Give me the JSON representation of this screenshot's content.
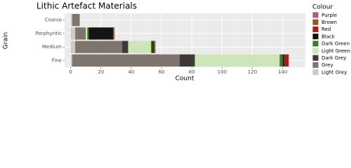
{
  "chart_data": {
    "type": "stacked-barh",
    "title": "Lithic Artefact Materials",
    "x_label": "Count",
    "y_label": "Grain",
    "legend_title": "Colour",
    "categories": [
      "Coarse",
      "Porphyritic",
      "Medium",
      "Fine"
    ],
    "series": [
      {
        "name": "Purple",
        "color": "#a0608f",
        "values": [
          0,
          0,
          0,
          0
        ]
      },
      {
        "name": "Brown",
        "color": "#8b5a2b",
        "values": [
          0,
          1,
          1,
          0
        ]
      },
      {
        "name": "Red",
        "color": "#a31d1d",
        "values": [
          0,
          0,
          0,
          3
        ]
      },
      {
        "name": "Black",
        "color": "#141414",
        "values": [
          0,
          16,
          1,
          1
        ]
      },
      {
        "name": "Dark Green",
        "color": "#3e7a2c",
        "values": [
          0,
          1,
          1,
          2
        ]
      },
      {
        "name": "Light Green",
        "color": "#cde5b9",
        "values": [
          0,
          1,
          15,
          56
        ]
      },
      {
        "name": "Dark Grey",
        "color": "#3d3a39",
        "values": [
          0,
          0,
          4,
          10
        ]
      },
      {
        "name": "Grey",
        "color": "#80746f",
        "values": [
          5,
          7,
          31,
          71
        ]
      },
      {
        "name": "Light Grey",
        "color": "#cfcbc8",
        "values": [
          1,
          3,
          3,
          1
        ]
      }
    ],
    "xlim": [
      -4,
      155
    ],
    "xticks": [
      0,
      20,
      40,
      60,
      80,
      100,
      120,
      140
    ],
    "grid": true
  }
}
